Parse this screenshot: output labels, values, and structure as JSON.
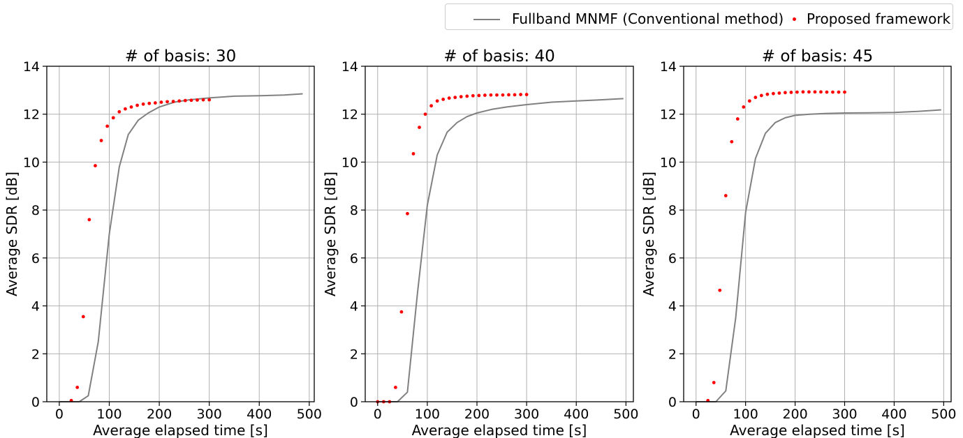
{
  "legend": {
    "entries": [
      {
        "name": "Fullband MNMF (Conventional method)",
        "color": "#808080",
        "marker": "line"
      },
      {
        "name": "Proposed framework",
        "color": "#ff0000",
        "marker": "dot"
      }
    ],
    "placement": "top-right"
  },
  "chart_data": [
    {
      "type": "line",
      "title": "# of basis: 30",
      "xlabel": "Average elapsed time [s]",
      "ylabel": "Average SDR [dB]",
      "xlim": [
        -25,
        510
      ],
      "ylim": [
        0,
        14
      ],
      "xticks": [
        0,
        100,
        200,
        300,
        400,
        500
      ],
      "yticks": [
        0,
        2,
        4,
        6,
        8,
        10,
        12,
        14
      ],
      "grid": true,
      "series": [
        {
          "name": "Fullband MNMF (Conventional method)",
          "style": "line",
          "color": "#808080",
          "x": [
            0,
            40,
            58,
            78,
            100,
            120,
            138,
            158,
            178,
            200,
            230,
            260,
            300,
            350,
            400,
            450,
            487
          ],
          "y": [
            0,
            0,
            0.25,
            2.5,
            7.0,
            9.8,
            11.15,
            11.75,
            12.05,
            12.3,
            12.5,
            12.6,
            12.68,
            12.75,
            12.77,
            12.8,
            12.85
          ]
        },
        {
          "name": "Proposed framework",
          "style": "scatter",
          "color": "#ff0000",
          "x": [
            24,
            36,
            48,
            60,
            72,
            84,
            96,
            108,
            120,
            132,
            144,
            156,
            168,
            180,
            192,
            204,
            216,
            228,
            240,
            252,
            264,
            276,
            288,
            300
          ],
          "y": [
            0.05,
            0.6,
            3.55,
            7.6,
            9.85,
            10.9,
            11.5,
            11.85,
            12.1,
            12.22,
            12.3,
            12.37,
            12.42,
            12.45,
            12.47,
            12.5,
            12.52,
            12.53,
            12.55,
            12.57,
            12.58,
            12.59,
            12.6,
            12.6
          ]
        }
      ]
    },
    {
      "type": "line",
      "title": "# of basis: 40",
      "xlabel": "Average elapsed time [s]",
      "ylabel": "Average SDR [dB]",
      "xlim": [
        -25,
        515
      ],
      "ylim": [
        0,
        14
      ],
      "xticks": [
        0,
        100,
        200,
        300,
        400,
        500
      ],
      "yticks": [
        0,
        2,
        4,
        6,
        8,
        10,
        12,
        14
      ],
      "grid": true,
      "series": [
        {
          "name": "Fullband MNMF (Conventional method)",
          "style": "line",
          "color": "#808080",
          "x": [
            0,
            40,
            60,
            80,
            100,
            120,
            140,
            160,
            180,
            200,
            230,
            260,
            300,
            350,
            400,
            450,
            495
          ],
          "y": [
            0,
            0,
            0.4,
            4.5,
            8.2,
            10.3,
            11.25,
            11.65,
            11.9,
            12.05,
            12.2,
            12.3,
            12.4,
            12.5,
            12.55,
            12.6,
            12.65
          ]
        },
        {
          "name": "Proposed framework",
          "style": "scatter",
          "color": "#ff0000",
          "x": [
            0,
            12,
            24,
            36,
            48,
            60,
            72,
            84,
            96,
            108,
            120,
            132,
            144,
            156,
            168,
            180,
            192,
            204,
            216,
            228,
            240,
            252,
            264,
            276,
            288,
            300
          ],
          "y": [
            0,
            0,
            0,
            0.6,
            3.75,
            7.85,
            10.35,
            11.45,
            12.0,
            12.35,
            12.55,
            12.62,
            12.67,
            12.7,
            12.73,
            12.75,
            12.77,
            12.78,
            12.79,
            12.8,
            12.8,
            12.8,
            12.81,
            12.81,
            12.82,
            12.82
          ]
        }
      ]
    },
    {
      "type": "line",
      "title": "# of basis: 45",
      "xlabel": "Average elapsed time [s]",
      "ylabel": "Average SDR [dB]",
      "xlim": [
        -25,
        515
      ],
      "ylim": [
        0,
        14
      ],
      "xticks": [
        0,
        100,
        200,
        300,
        400,
        500
      ],
      "yticks": [
        0,
        2,
        4,
        6,
        8,
        10,
        12,
        14
      ],
      "grid": true,
      "series": [
        {
          "name": "Fullband MNMF (Conventional method)",
          "style": "line",
          "color": "#808080",
          "x": [
            0,
            40,
            60,
            80,
            100,
            120,
            140,
            160,
            180,
            200,
            230,
            260,
            300,
            350,
            400,
            450,
            495
          ],
          "y": [
            0,
            0,
            0.45,
            3.5,
            7.9,
            10.15,
            11.2,
            11.65,
            11.85,
            11.95,
            12.0,
            12.03,
            12.05,
            12.06,
            12.07,
            12.12,
            12.18
          ]
        },
        {
          "name": "Proposed framework",
          "style": "scatter",
          "color": "#ff0000",
          "x": [
            24,
            36,
            48,
            60,
            72,
            84,
            96,
            108,
            120,
            132,
            144,
            156,
            168,
            180,
            192,
            204,
            216,
            228,
            240,
            252,
            264,
            276,
            288,
            300
          ],
          "y": [
            0.05,
            0.8,
            4.65,
            8.6,
            10.85,
            11.8,
            12.3,
            12.55,
            12.7,
            12.78,
            12.83,
            12.86,
            12.88,
            12.9,
            12.91,
            12.92,
            12.93,
            12.93,
            12.93,
            12.93,
            12.92,
            12.92,
            12.92,
            12.92
          ]
        }
      ]
    }
  ]
}
